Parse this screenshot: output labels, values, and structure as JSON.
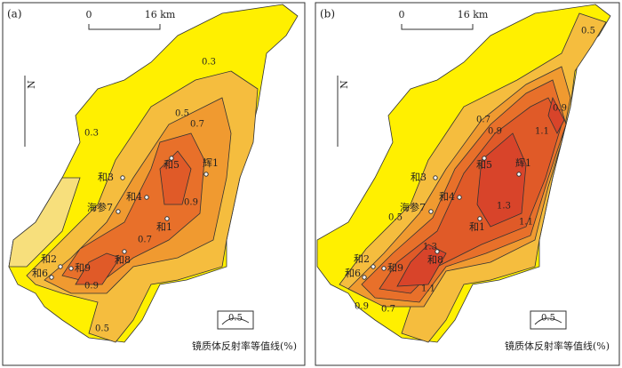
{
  "panels": [
    {
      "label": "(a)",
      "scale": {
        "start": "0",
        "end": "16 km"
      },
      "north": "N",
      "contour_labels": [
        "0.3",
        "0.3",
        "0.5",
        "0.7",
        "0.9",
        "0.7",
        "0.9",
        "0.5"
      ],
      "wells": [
        "和3",
        "海参7",
        "和4",
        "和5",
        "辉1",
        "和1",
        "和2",
        "和6",
        "和9",
        "和8"
      ],
      "legend": {
        "sample": "0.5",
        "caption": "镜质体反射率等值线(%)"
      }
    },
    {
      "label": "(b)",
      "scale": {
        "start": "0",
        "end": "16 km"
      },
      "north": "N",
      "contour_labels": [
        "0.5",
        "0.9",
        "1.1",
        "0.7",
        "0.9",
        "1.3",
        "1.1",
        "0.5",
        "1.3",
        "1.1",
        "0.9",
        "0.7"
      ],
      "wells": [
        "和3",
        "海参7",
        "和4",
        "和5",
        "辉1",
        "和1",
        "和2",
        "和6",
        "和9",
        "和8"
      ],
      "legend": {
        "sample": "0.5",
        "caption": "镜质体反射率等值线(%)"
      }
    }
  ]
}
